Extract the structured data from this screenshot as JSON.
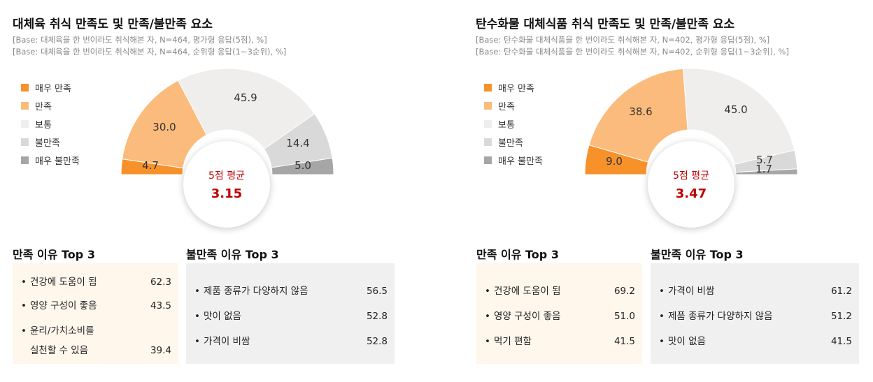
{
  "legend": [
    "매우 만족",
    "만족",
    "보통",
    "불만족",
    "매우 불만족"
  ],
  "colors": {
    "very_satisfied": "#f7922a",
    "satisfied": "#fbbb7c",
    "neutral": "#efeeed",
    "dissatisfied": "#d9d9d9",
    "very_dissatisfied": "#a6a6a6",
    "accent_red": "#c00000",
    "satisfied_box": "#fff6ec",
    "dissatisfied_box": "#f0f0f0"
  },
  "left": {
    "title": "대체육 취식 만족도 및 만족/불만족 요소",
    "base1": "[Base: 대체육을 한 번이라도 취식해본 자, N=464, 평가형 응답(5점), %]",
    "base2": "[Base: 대체육을 한 번이라도 취식해본 자, N=464, 순위형 응답(1~3순위), %]",
    "center_label": "5점 평균",
    "center_value": "3.15",
    "sat_title": "만족 이유 Top 3",
    "sat_items": [
      {
        "bullet": "•",
        "label": "건강에 도움이 됨",
        "value": "62.3"
      },
      {
        "bullet": "•",
        "label": "영양 구성이 좋음",
        "value": "43.5"
      },
      {
        "bullet": "•",
        "label": "윤리/가치소비를",
        "label2": "실천할 수 있음",
        "value": "39.4"
      }
    ],
    "dis_title": "불만족 이유 Top 3",
    "dis_items": [
      {
        "bullet": "•",
        "label": "제품 종류가 다양하지 않음",
        "value": "56.5"
      },
      {
        "bullet": "•",
        "label": "맛이 없음",
        "value": "52.8"
      },
      {
        "bullet": "•",
        "label": "가격이 비쌈",
        "value": "52.8"
      }
    ]
  },
  "right": {
    "title": "탄수화물 대체식품 취식 만족도 및 만족/불만족 요소",
    "base1": "[Base: 탄수화물 대체식품을 한 번이라도 취식해본 자, N=402, 평가형 응답(5점), %]",
    "base2": "[Base: 탄수화물 대체식품을 한 번이라도 취식해본 자, N=402, 순위형 응답(1~3순위), %]",
    "center_label": "5점 평균",
    "center_value": "3.47",
    "sat_title": "만족 이유 Top 3",
    "sat_items": [
      {
        "bullet": "•",
        "label": "건강에 도움이 됨",
        "value": "69.2"
      },
      {
        "bullet": "•",
        "label": "영양 구성이 좋음",
        "value": "51.0"
      },
      {
        "bullet": "•",
        "label": "먹기 편함",
        "value": "41.5"
      }
    ],
    "dis_title": "불만족 이유 Top 3",
    "dis_items": [
      {
        "bullet": "•",
        "label": "가격이 비쌈",
        "value": "61.2"
      },
      {
        "bullet": "•",
        "label": "제품 종류가 다양하지 않음",
        "value": "51.2"
      },
      {
        "bullet": "•",
        "label": "맛이 없음",
        "value": "41.5"
      }
    ]
  },
  "chart_data": [
    {
      "type": "pie",
      "subtype": "semi-donut",
      "title": "대체육 취식 만족도",
      "categories": [
        "매우 만족",
        "만족",
        "보통",
        "불만족",
        "매우 불만족"
      ],
      "values": [
        4.7,
        30.0,
        45.9,
        14.4,
        5.0
      ],
      "labels": [
        "4.7",
        "30.0",
        "45.9",
        "14.4",
        "5.0"
      ],
      "center_label": "5점 평균",
      "center_value": "3.15",
      "legend_position": "left"
    },
    {
      "type": "pie",
      "subtype": "semi-donut",
      "title": "탄수화물 대체식품 취식 만족도",
      "categories": [
        "매우 만족",
        "만족",
        "보통",
        "불만족",
        "매우 불만족"
      ],
      "values": [
        9.0,
        38.6,
        45.0,
        5.7,
        1.7
      ],
      "labels": [
        "9.0",
        "38.6",
        "45.0",
        "5.7",
        "1.7"
      ],
      "center_label": "5점 평균",
      "center_value": "3.47",
      "legend_position": "left"
    }
  ]
}
